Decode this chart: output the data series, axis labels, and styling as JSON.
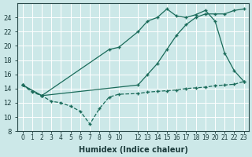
{
  "background_color": "#cce8e8",
  "grid_color": "#ffffff",
  "line_color": "#1a6b5a",
  "xlabel": "Humidex (Indice chaleur)",
  "xlim": [
    -0.5,
    23.5
  ],
  "ylim": [
    8,
    26
  ],
  "yticks": [
    8,
    10,
    12,
    14,
    16,
    18,
    20,
    22,
    24
  ],
  "xticks": [
    0,
    1,
    2,
    3,
    4,
    5,
    6,
    7,
    8,
    9,
    10,
    12,
    13,
    14,
    15,
    16,
    17,
    18,
    19,
    20,
    21,
    22,
    23
  ],
  "xtick_labels": [
    "0",
    "1",
    "2",
    "3",
    "4",
    "5",
    "6",
    "7",
    "8",
    "9",
    "10",
    "12",
    "13",
    "14",
    "15",
    "16",
    "17",
    "18",
    "19",
    "20",
    "21",
    "22",
    "23"
  ],
  "line1_x": [
    0,
    1,
    2,
    3,
    4,
    5,
    6,
    7,
    8,
    9,
    10,
    12,
    13,
    14,
    15,
    16,
    17,
    18,
    19,
    20,
    21,
    22,
    23
  ],
  "line1_y": [
    14.5,
    13.5,
    13.0,
    12.2,
    12.0,
    11.5,
    10.8,
    9.0,
    11.2,
    12.8,
    13.2,
    13.3,
    13.5,
    13.6,
    13.7,
    13.8,
    14.0,
    14.1,
    14.2,
    14.4,
    14.5,
    14.6,
    15.0
  ],
  "line2_x": [
    0,
    2,
    9,
    10,
    12,
    13,
    14,
    15,
    16,
    17,
    18,
    19,
    20,
    21,
    22,
    23
  ],
  "line2_y": [
    14.5,
    13.0,
    19.5,
    19.8,
    22.0,
    23.5,
    24.0,
    25.2,
    24.2,
    24.0,
    24.4,
    25.0,
    23.5,
    19.0,
    16.5,
    15.0
  ],
  "line3_x": [
    0,
    2,
    12,
    13,
    14,
    15,
    16,
    17,
    18,
    19,
    20,
    21,
    22,
    23
  ],
  "line3_y": [
    14.5,
    13.0,
    14.5,
    16.0,
    17.5,
    19.5,
    21.5,
    23.0,
    24.0,
    24.5,
    24.5,
    24.5,
    25.0,
    25.2
  ]
}
